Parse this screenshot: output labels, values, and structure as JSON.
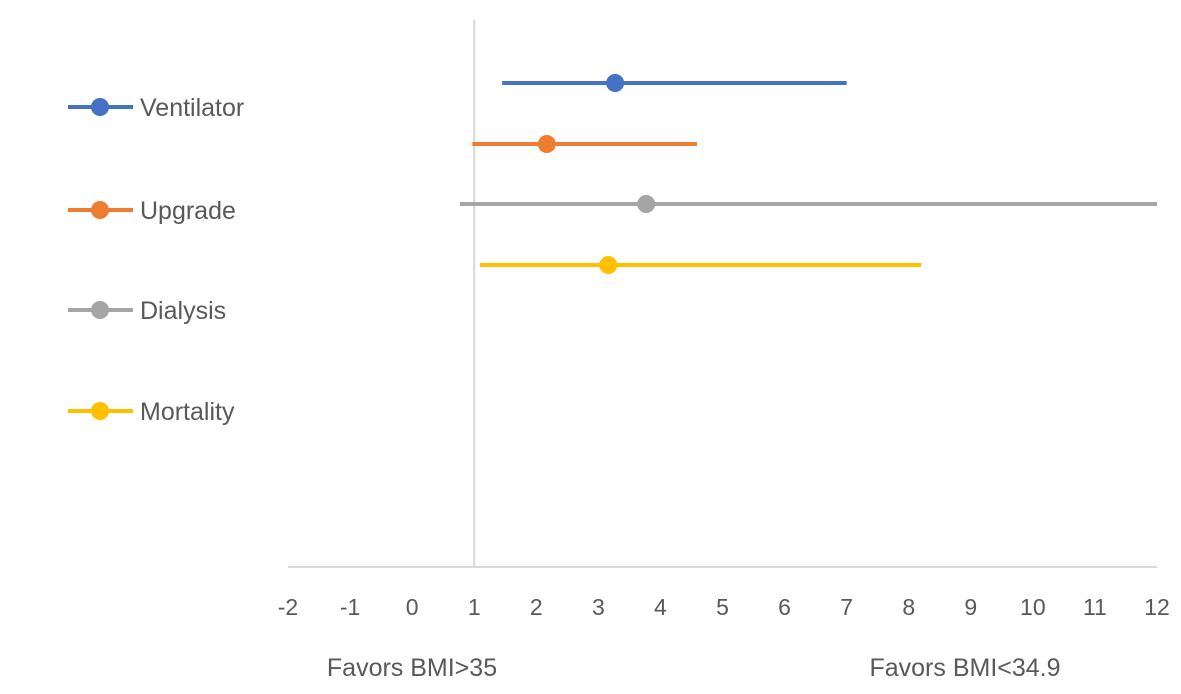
{
  "chart_data": {
    "type": "forest",
    "title": "",
    "xlim": [
      -2,
      12
    ],
    "x_ticks": [
      -2,
      -1,
      0,
      1,
      2,
      3,
      4,
      5,
      6,
      7,
      8,
      9,
      10,
      11,
      12
    ],
    "reference_line": 1,
    "grid": false,
    "legend_position": "left",
    "annotations": {
      "left": "Favors BMI>35",
      "right": "Favors BMI<34.9"
    },
    "series": [
      {
        "name": "Ventilator",
        "color": "#4472C4",
        "estimate": 3.27,
        "lower": 1.45,
        "upper": 7.0
      },
      {
        "name": "Upgrade",
        "color": "#ED7D31",
        "estimate": 2.17,
        "lower": 0.97,
        "upper": 4.59
      },
      {
        "name": "Dialysis",
        "color": "#A5A5A5",
        "estimate": 3.77,
        "lower": 0.77,
        "upper": 12
      },
      {
        "name": "Mortality",
        "color": "#FFC000",
        "estimate": 3.16,
        "lower": 1.09,
        "upper": 8.2
      }
    ]
  }
}
